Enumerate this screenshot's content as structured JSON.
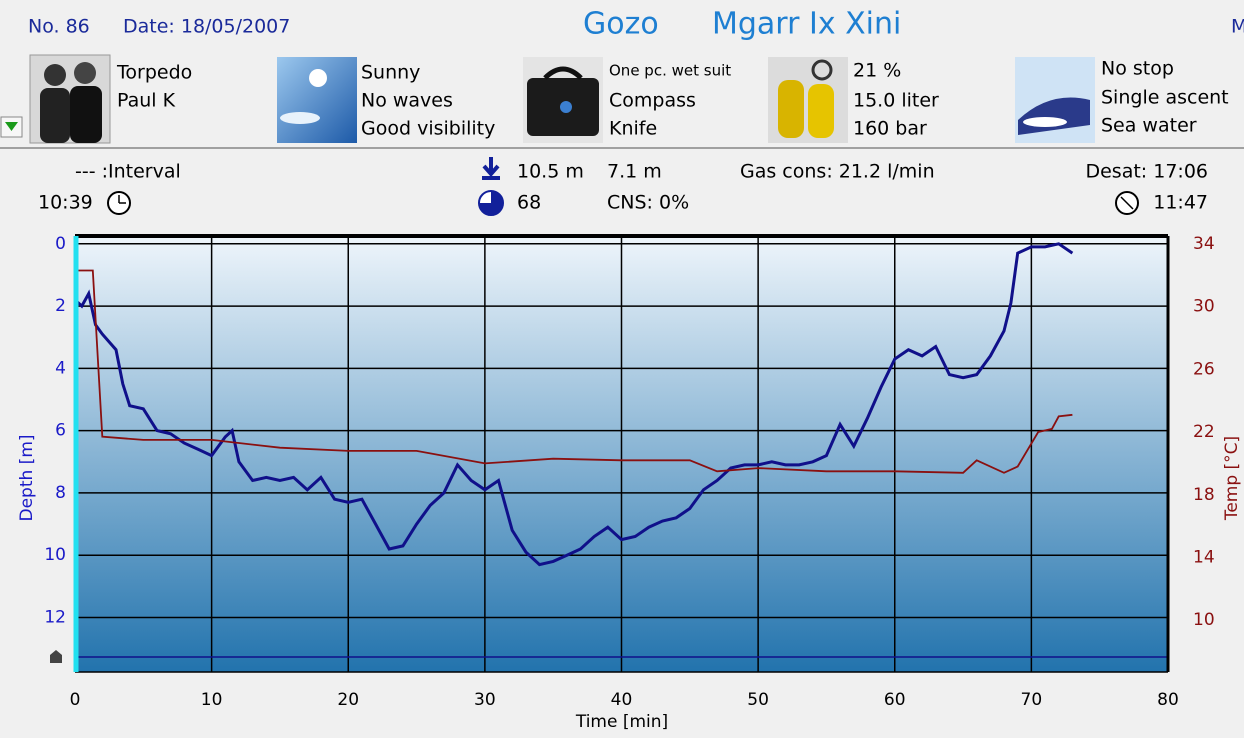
{
  "header": {
    "number": "No. 86",
    "date": "Date: 18/05/2007",
    "location": "Gozo",
    "site": "Mgarr Ix Xini",
    "cut": "M"
  },
  "details": [
    {
      "lines": [
        "Torpedo",
        "Paul K"
      ]
    },
    {
      "lines": [
        "Sunny",
        "No waves",
        "Good visibility"
      ]
    },
    {
      "lines": [
        "One pc. wet suit",
        "Compass",
        "Knife"
      ]
    },
    {
      "lines": [
        "21 %",
        "15.0 liter",
        "160 bar"
      ]
    },
    {
      "lines": [
        "No stop",
        "Single ascent",
        "Sea water"
      ]
    }
  ],
  "stats": {
    "interval": "--- :Interval",
    "start_time": "10:39",
    "max_depth": "10.5 m",
    "avg_depth": "7.1 m",
    "duration": "68",
    "cns": "CNS:  0%",
    "gas": "Gas cons: 21.2 l/min",
    "desat": "Desat: 17:06",
    "end_time": "11:47"
  },
  "chart_data": {
    "type": "line",
    "x_label": "Time [min]",
    "y_label": "Depth [m]",
    "y2_label": "Temp [°C]",
    "xlim": [
      0,
      80
    ],
    "xticks": [
      0,
      10,
      20,
      30,
      40,
      50,
      60,
      70,
      80
    ],
    "ylim": [
      13.75,
      -0.25
    ],
    "yticks": [
      0,
      2,
      4,
      6,
      8,
      10,
      12
    ],
    "y2lim": [
      6.7,
      34.5
    ],
    "y2ticks": [
      34,
      30,
      26,
      22,
      18,
      14,
      10
    ],
    "grid": true,
    "series": [
      {
        "name": "Depth",
        "color": "#10108a",
        "axis": "y",
        "x": [
          0,
          0.5,
          1,
          1.5,
          2,
          3,
          3.5,
          4,
          5,
          6,
          7,
          8,
          9,
          10,
          11,
          11.5,
          12,
          13,
          14,
          15,
          16,
          17,
          18,
          19,
          20,
          21,
          22,
          23,
          24,
          25,
          26,
          27,
          28,
          29,
          30,
          31,
          32,
          33,
          34,
          35,
          36,
          37,
          38,
          39,
          40,
          41,
          42,
          43,
          44,
          45,
          46,
          47,
          48,
          49,
          50,
          51,
          52,
          53,
          54,
          55,
          56,
          57,
          58,
          59,
          60,
          61,
          62,
          63,
          64,
          65,
          66,
          67,
          68,
          68.5,
          69,
          70,
          71,
          72,
          73
        ],
        "values": [
          1.8,
          2.0,
          1.6,
          2.6,
          2.9,
          3.4,
          4.5,
          5.2,
          5.3,
          6.0,
          6.1,
          6.4,
          6.6,
          6.8,
          6.2,
          6.0,
          7.0,
          7.6,
          7.5,
          7.6,
          7.5,
          7.9,
          7.5,
          8.2,
          8.3,
          8.2,
          9.0,
          9.8,
          9.7,
          9.0,
          8.4,
          8.0,
          7.1,
          7.6,
          7.9,
          7.6,
          9.2,
          9.9,
          10.3,
          10.2,
          10.0,
          9.8,
          9.4,
          9.1,
          9.5,
          9.4,
          9.1,
          8.9,
          8.8,
          8.5,
          7.9,
          7.6,
          7.2,
          7.1,
          7.1,
          7.0,
          7.1,
          7.1,
          7.0,
          6.8,
          5.8,
          6.5,
          5.6,
          4.6,
          3.7,
          3.4,
          3.6,
          3.3,
          4.2,
          4.3,
          4.2,
          3.6,
          2.8,
          1.9,
          0.3,
          0.1,
          0.1,
          0.0,
          0.3
        ]
      },
      {
        "name": "Temperature",
        "color": "#8a1010",
        "axis": "y2",
        "x": [
          0,
          1.3,
          2,
          5,
          10,
          15,
          20,
          25,
          30,
          35,
          40,
          45,
          47,
          50,
          55,
          60,
          65,
          66,
          68,
          69,
          70.5,
          71.5,
          72,
          73
        ],
        "values": [
          32.3,
          32.3,
          21.7,
          21.5,
          21.5,
          21.0,
          20.8,
          20.8,
          20.0,
          20.3,
          20.2,
          20.2,
          19.5,
          19.7,
          19.5,
          19.5,
          19.4,
          20.2,
          19.4,
          19.8,
          22.0,
          22.2,
          23.0,
          23.1
        ]
      }
    ]
  }
}
